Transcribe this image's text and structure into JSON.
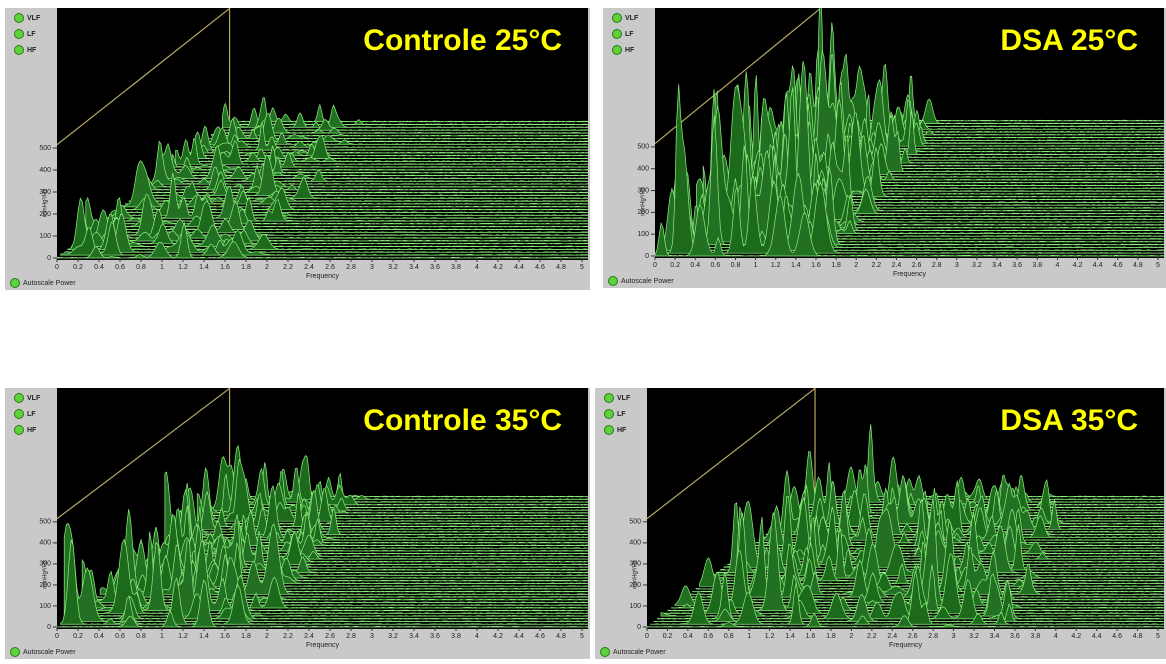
{
  "axes": {
    "y_label": "mmHg²/Hz",
    "x_label": "Frequency",
    "yticks": [
      0,
      100,
      200,
      300,
      400,
      500
    ],
    "xticks": [
      0,
      0.2,
      0.4,
      0.6,
      0.8,
      1,
      1.2,
      1.4,
      1.6,
      1.8,
      2,
      2.2,
      2.4,
      2.6,
      2.8,
      3,
      3.2,
      3.4,
      3.6,
      3.8,
      4,
      4.2,
      4.4,
      4.6,
      4.8,
      5
    ]
  },
  "legend": [
    "VLF",
    "LF",
    "HF"
  ],
  "autoscale": "Autoscale Power",
  "panels": [
    {
      "title": "Controle 25°C"
    },
    {
      "title": "DSA 25°C"
    },
    {
      "title": "Controle 35°C"
    },
    {
      "title": "DSA 35°C"
    }
  ]
}
